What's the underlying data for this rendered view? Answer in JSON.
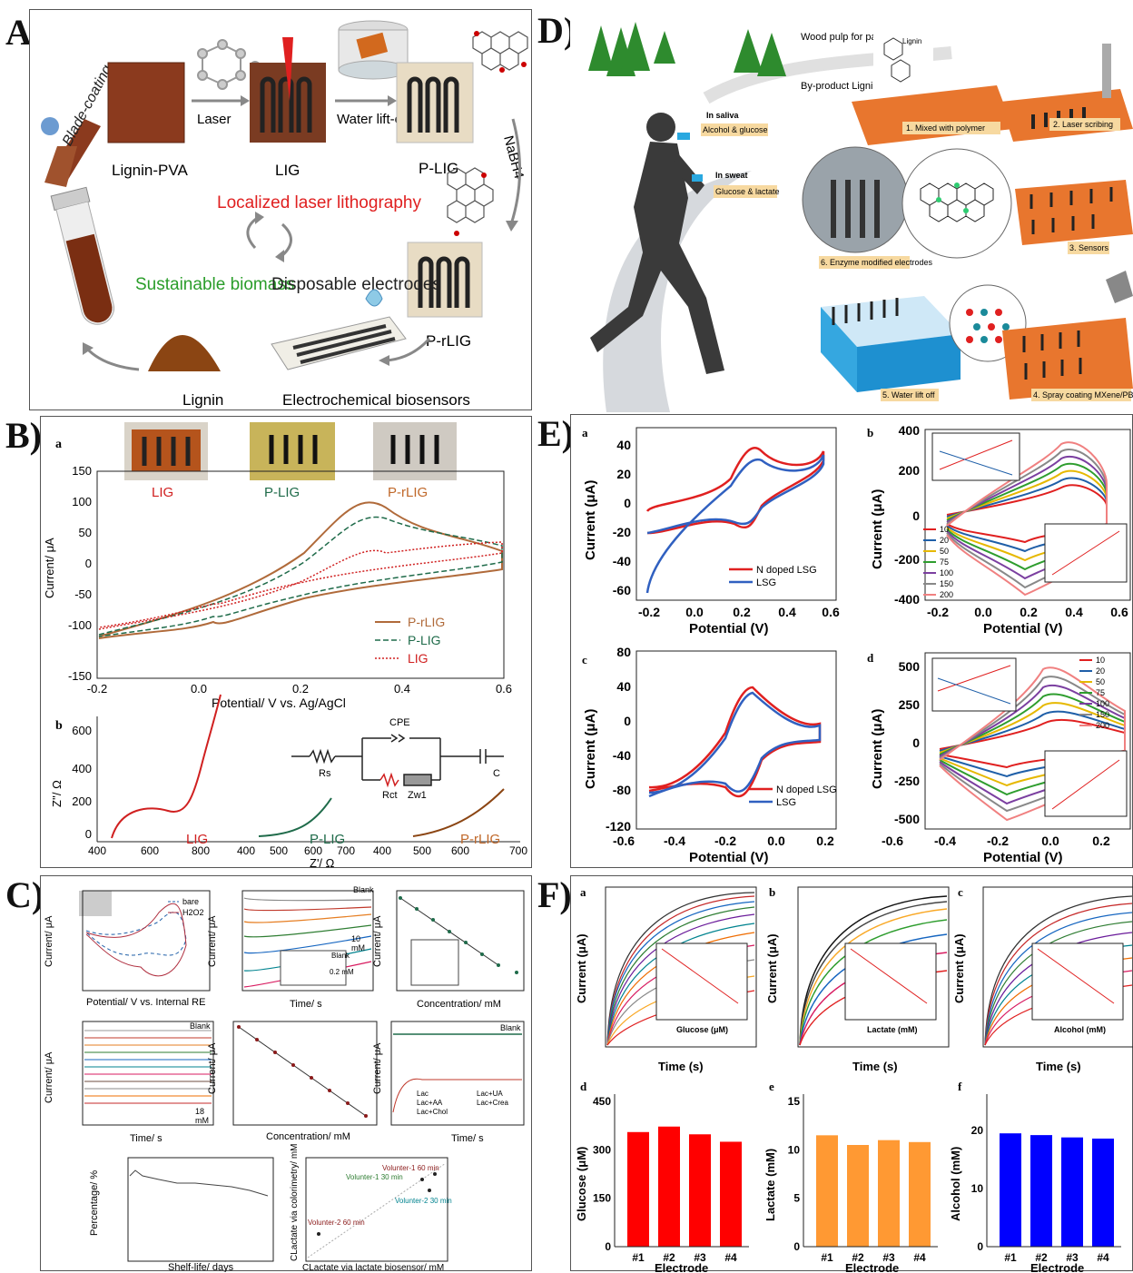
{
  "labels": {
    "A": "A)",
    "B": "B)",
    "C": "C)",
    "D": "D)",
    "E": "E)",
    "F": "F)"
  },
  "panelA": {
    "blade": "Blade-coating",
    "lignin_pva": "Lignin-PVA",
    "laser": "Laser",
    "lig": "LIG",
    "lift": "Water lift-off",
    "plig": "P-LIG",
    "nabh4": "NaBH4",
    "loc": "Localized laser lithography",
    "sust": "Sustainable biomass",
    "disp": "Disposable electrodes",
    "prlig": "P-rLIG",
    "lignin": "Lignin",
    "echem": "Electrochemical biosensors"
  },
  "panelB": {
    "a": "a",
    "b": "b",
    "photos": [
      "LIG",
      "P-LIG",
      "P-rLIG"
    ],
    "ylabel": "Current/ μA",
    "xlabel": "Potential/ V vs. Ag/AgCl",
    "yticks": [
      "150",
      "100",
      "50",
      "0",
      "-50",
      "-100",
      "-150"
    ],
    "xticks": [
      "-0.2",
      "0.0",
      "0.2",
      "0.4",
      "0.6"
    ],
    "legend": [
      "P-rLIG",
      "P-LIG",
      "LIG"
    ],
    "zy": "Z''/ Ω",
    "zx": "Z'/ Ω",
    "zyticks": [
      "600",
      "400",
      "200",
      "0"
    ],
    "zx1": [
      "400",
      "600",
      "800"
    ],
    "zx2": [
      "400",
      "500",
      "600",
      "700"
    ],
    "zx3": [
      "400",
      "500",
      "600",
      "700"
    ],
    "nyq": [
      "LIG",
      "P-LIG",
      "P-rLIG"
    ],
    "circuit": {
      "rs": "Rs",
      "cpe": "CPE",
      "rct": "Rct",
      "zw": "Zw1",
      "c": "C"
    }
  },
  "panelC": {
    "a_leg": [
      "bare",
      "H2O2"
    ],
    "a_x": "Potential/ V vs. Internal RE",
    "a_y": "Current/ μA",
    "b_y": "Current/ μA",
    "b_x": "Time/ s",
    "b_blank": "Blank",
    "b_10": "10",
    "b_mm": "mM",
    "b_blank2": "Blank",
    "b_02": "0.2 mM",
    "c_y": "Current/ μA",
    "c_x": "Concentration/ mM",
    "d_y": "Current/ μA",
    "d_x": "Time/ s",
    "d_blank": "Blank",
    "d_18": "18",
    "d_mm": "mM",
    "e_y": "Current/ μA",
    "e_x": "Concentration/ mM",
    "f_y": "Current/ μA",
    "f_x": "Time/ s",
    "f_blank": "Blank",
    "f_leg": [
      "Lac",
      "Lac+AA",
      "Lac+Chol",
      "Lac+UA",
      "Lac+Crea"
    ],
    "g_y": "Percentage/ %",
    "g_x": "Shelf-life/ days",
    "h_y": "CLactate via colorimetry/ mM",
    "h_x": "CLactate via lactate biosensor/ mM",
    "h_pts": [
      "Volunter-1 60 min",
      "Volunter-1 30 min",
      "Volunter-2 30 min",
      "Volunter-2 60 min"
    ]
  },
  "panelD": {
    "wood": "Wood pulp for paper",
    "byp": "By-product Lignin",
    "lignin": "Lignin",
    "saliva": "In saliva",
    "saliva_t": "Alcohol & glucose",
    "sweat": "In sweat",
    "sweat_t": "Glucose & lactate",
    "s1": "1. Mixed with polymer",
    "s2": "2. Laser scribing",
    "s3": "3. Sensors",
    "s4": "4. Spray coating MXene/PB",
    "s5": "5. Water lift off",
    "s6": "6. Enzyme modified electrodes"
  },
  "panelE": {
    "a": "a",
    "b": "b",
    "c": "c",
    "d": "d",
    "ylabel": "Current (μA)",
    "xlabel": "Potential (V)",
    "leg": [
      "N doped LSG",
      "LSG"
    ],
    "scan": [
      "10",
      "20",
      "50",
      "75",
      "100",
      "150",
      "200"
    ],
    "a_y": [
      "40",
      "20",
      "0",
      "-20",
      "-40",
      "-60"
    ],
    "a_x": [
      "-0.2",
      "0.0",
      "0.2",
      "0.4",
      "0.6"
    ],
    "b_y": [
      "400",
      "200",
      "0",
      "-200",
      "-400"
    ],
    "b_x": [
      "-0.2",
      "0.0",
      "0.2",
      "0.4",
      "0.6"
    ],
    "c_y": [
      "80",
      "40",
      "0",
      "-40",
      "-80",
      "-120"
    ],
    "c_x": [
      "-0.6",
      "-0.4",
      "-0.2",
      "0.0",
      "0.2"
    ],
    "d_y": [
      "500",
      "250",
      "0",
      "-250",
      "-500"
    ],
    "d_x": [
      "-0.6",
      "-0.4",
      "-0.2",
      "0.0",
      "0.2"
    ]
  },
  "panelF": {
    "a": "a",
    "b": "b",
    "c": "c",
    "d": "d",
    "e": "e",
    "f": "f",
    "ylabel": "Current (μA)",
    "xlabel": "Time (s)",
    "ins_x": [
      "Glucose (μM)",
      "Lactate (mM)",
      "Alcohol (mM)"
    ],
    "bar_y": [
      "Glucose (μM)",
      "Lactate (mM)",
      "Alcohol (mM)"
    ],
    "bar_x": "Electrode",
    "cats": [
      "#1",
      "#2",
      "#3",
      "#4"
    ],
    "colors": [
      "#ff0000",
      "#ff9933",
      "#0000ff"
    ]
  }
}
